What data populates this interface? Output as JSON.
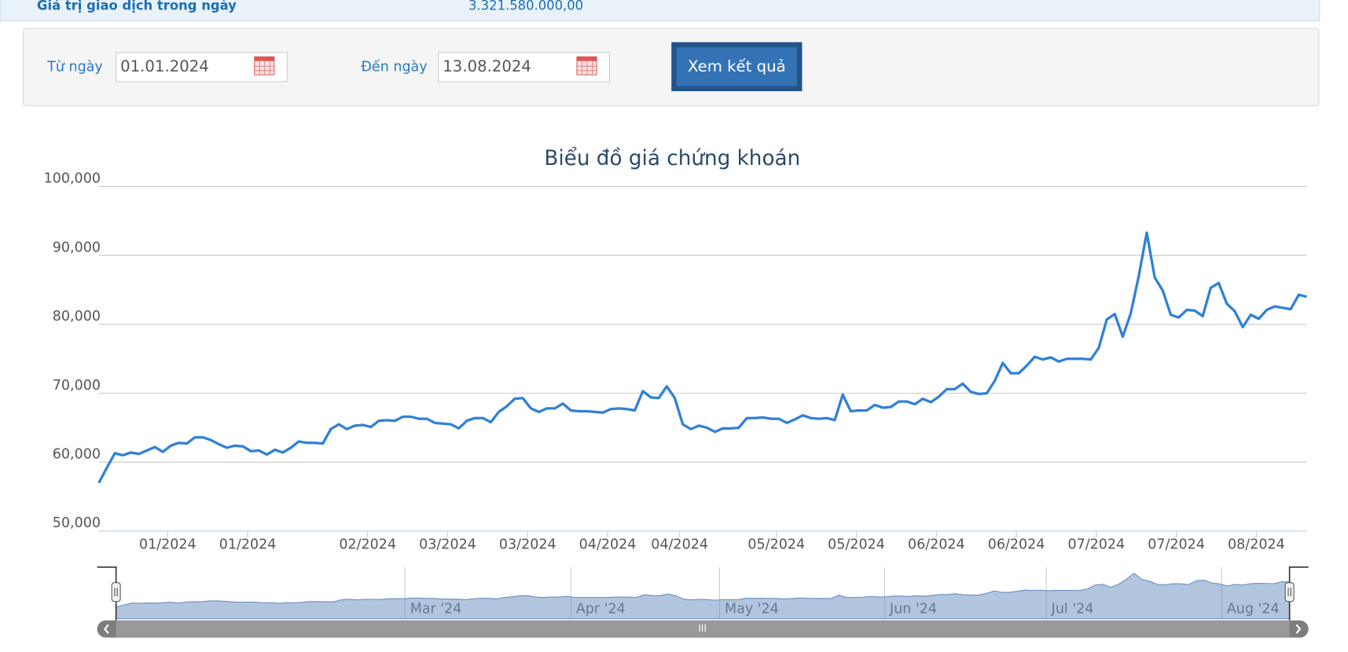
{
  "info": {
    "label": "Giá trị giao dịch trong ngày",
    "value": "3.321.580.000,00"
  },
  "filter": {
    "from_label": "Từ ngày",
    "from_value": "01.01.2024",
    "to_label": "Đến ngày",
    "to_value": "13.08.2024",
    "button": "Xem kết quả"
  },
  "chart_data": {
    "type": "line",
    "title": "Biểu đồ giá chứng khoán",
    "color": "#3080d8",
    "grid": true,
    "ylim": [
      50000,
      100000
    ],
    "yticks": [
      {
        "value": 50000,
        "label": "50,000"
      },
      {
        "value": 60000,
        "label": "60,000"
      },
      {
        "value": 70000,
        "label": "70,000"
      },
      {
        "value": 80000,
        "label": "80,000"
      },
      {
        "value": 90000,
        "label": "90,000"
      },
      {
        "value": 100000,
        "label": "100,000"
      }
    ],
    "xlim": [
      0,
      151
    ],
    "xticks": [
      {
        "value": 8.6,
        "label": "01/2024"
      },
      {
        "value": 18.6,
        "label": "01/2024"
      },
      {
        "value": 33.6,
        "label": "02/2024"
      },
      {
        "value": 43.6,
        "label": "03/2024"
      },
      {
        "value": 53.6,
        "label": "03/2024"
      },
      {
        "value": 63.6,
        "label": "04/2024"
      },
      {
        "value": 72.6,
        "label": "04/2024"
      },
      {
        "value": 84.7,
        "label": "05/2024"
      },
      {
        "value": 94.7,
        "label": "05/2024"
      },
      {
        "value": 104.7,
        "label": "06/2024"
      },
      {
        "value": 114.7,
        "label": "06/2024"
      },
      {
        "value": 124.7,
        "label": "07/2024"
      },
      {
        "value": 134.7,
        "label": "07/2024"
      },
      {
        "value": 144.7,
        "label": "08/2024"
      }
    ],
    "values": [
      57000,
      59200,
      61300,
      61000,
      61400,
      61200,
      61700,
      62200,
      61500,
      62400,
      62800,
      62700,
      63600,
      63600,
      63200,
      62600,
      62100,
      62400,
      62300,
      61600,
      61700,
      61100,
      61800,
      61400,
      62100,
      63000,
      62800,
      62800,
      62700,
      64800,
      65500,
      64800,
      65300,
      65400,
      65100,
      66000,
      66100,
      66000,
      66600,
      66600,
      66300,
      66300,
      65700,
      65600,
      65500,
      64900,
      66000,
      66400,
      66400,
      65800,
      67300,
      68100,
      69200,
      69300,
      67800,
      67300,
      67800,
      67800,
      68500,
      67500,
      67400,
      67400,
      67300,
      67200,
      67700,
      67800,
      67700,
      67500,
      70300,
      69400,
      69300,
      71000,
      69300,
      65500,
      64800,
      65300,
      65000,
      64400,
      64900,
      64900,
      65000,
      66400,
      66400,
      66500,
      66300,
      66300,
      65700,
      66200,
      66800,
      66400,
      66300,
      66400,
      66100,
      69800,
      67400,
      67500,
      67500,
      68300,
      67900,
      68000,
      68800,
      68800,
      68400,
      69200,
      68700,
      69500,
      70600,
      70600,
      71400,
      70200,
      69900,
      70000,
      71800,
      74400,
      72900,
      72900,
      74000,
      75300,
      74900,
      75200,
      74600,
      75000,
      75000,
      75000,
      74900,
      76600,
      80700,
      81500,
      78200,
      81600,
      87000,
      93300,
      86800,
      84900,
      81400,
      81000,
      82100,
      82000,
      81200,
      85300,
      86000,
      83000,
      81900,
      79600,
      81400,
      80800,
      82100,
      82600,
      82400,
      82200,
      84300,
      84000
    ],
    "navigator_labels": [
      "Mar '24",
      "Apr '24",
      "May '24",
      "Jun '24",
      "Jul '24",
      "Aug '24"
    ]
  }
}
